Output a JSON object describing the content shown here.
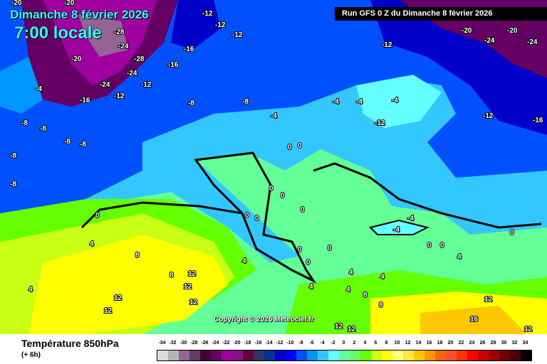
{
  "header": {
    "date": "Dimanche 8 février 2026",
    "time": "7:00 locale",
    "run": "Run GFS 0 Z du Dimanche 8 février 2026"
  },
  "copyright": "Copyright © 2026 Meteociel.fr",
  "footer": {
    "title": "Température 850hPa",
    "subtitle": "(+ 6h)"
  },
  "legend": {
    "ticks": [
      "-34",
      "-32",
      "-30",
      "-28",
      "-26",
      "-24",
      "-22",
      "-20",
      "-18",
      "-16",
      "-14",
      "-12",
      "-10",
      "-8",
      "-6",
      "-4",
      "-2",
      "0",
      "2",
      "4",
      "6",
      "8",
      "10",
      "12",
      "14",
      "16",
      "18",
      "20",
      "22",
      "24",
      "26",
      "28",
      "30",
      "32",
      "34"
    ],
    "colors": [
      "#dcdcdc",
      "#b4b4b4",
      "#946494",
      "#643c64",
      "#46003c",
      "#640064",
      "#a000a0",
      "#821482",
      "#640041",
      "#323264",
      "#003296",
      "#0000c8",
      "#0000ff",
      "#0050ff",
      "#0096ff",
      "#32c8ff",
      "#64ffff",
      "#64ff96",
      "#64ff64",
      "#64ff00",
      "#c8ff14",
      "#ffff00",
      "#ffff78",
      "#ffe646",
      "#ffc800",
      "#ff9600",
      "#ff6400",
      "#ff5032",
      "#ff3200",
      "#ff0000",
      "#c80000",
      "#a00000",
      "#6e0000",
      "#500000",
      "#000000"
    ]
  },
  "contour_labels": [
    "-20",
    "-20",
    "-28",
    "-24",
    "-28",
    "-20",
    "-24",
    "-24",
    "-16",
    "-12",
    "-12",
    "-12",
    "-12",
    "-12",
    "-16",
    "-20",
    "-24",
    "-20",
    "-24",
    "-4",
    "-16",
    "-12",
    "-8",
    "-8",
    "-8",
    "-8",
    "-8",
    "-8",
    "-8",
    "-8",
    "-4",
    "-4",
    "-4",
    "-4",
    "-12",
    "-12",
    "-16",
    "0",
    "0",
    "0",
    "0",
    "0",
    "0",
    "0",
    "0",
    "-4",
    "0",
    "0",
    "0",
    "4",
    "4",
    "0",
    "8",
    "4",
    "8",
    "12",
    "12",
    "12",
    "12",
    "12",
    "4",
    "4",
    "8",
    "4",
    "4",
    "8",
    "12",
    "12",
    "16",
    "12",
    "12",
    "4",
    "0",
    "0",
    "-4"
  ]
}
